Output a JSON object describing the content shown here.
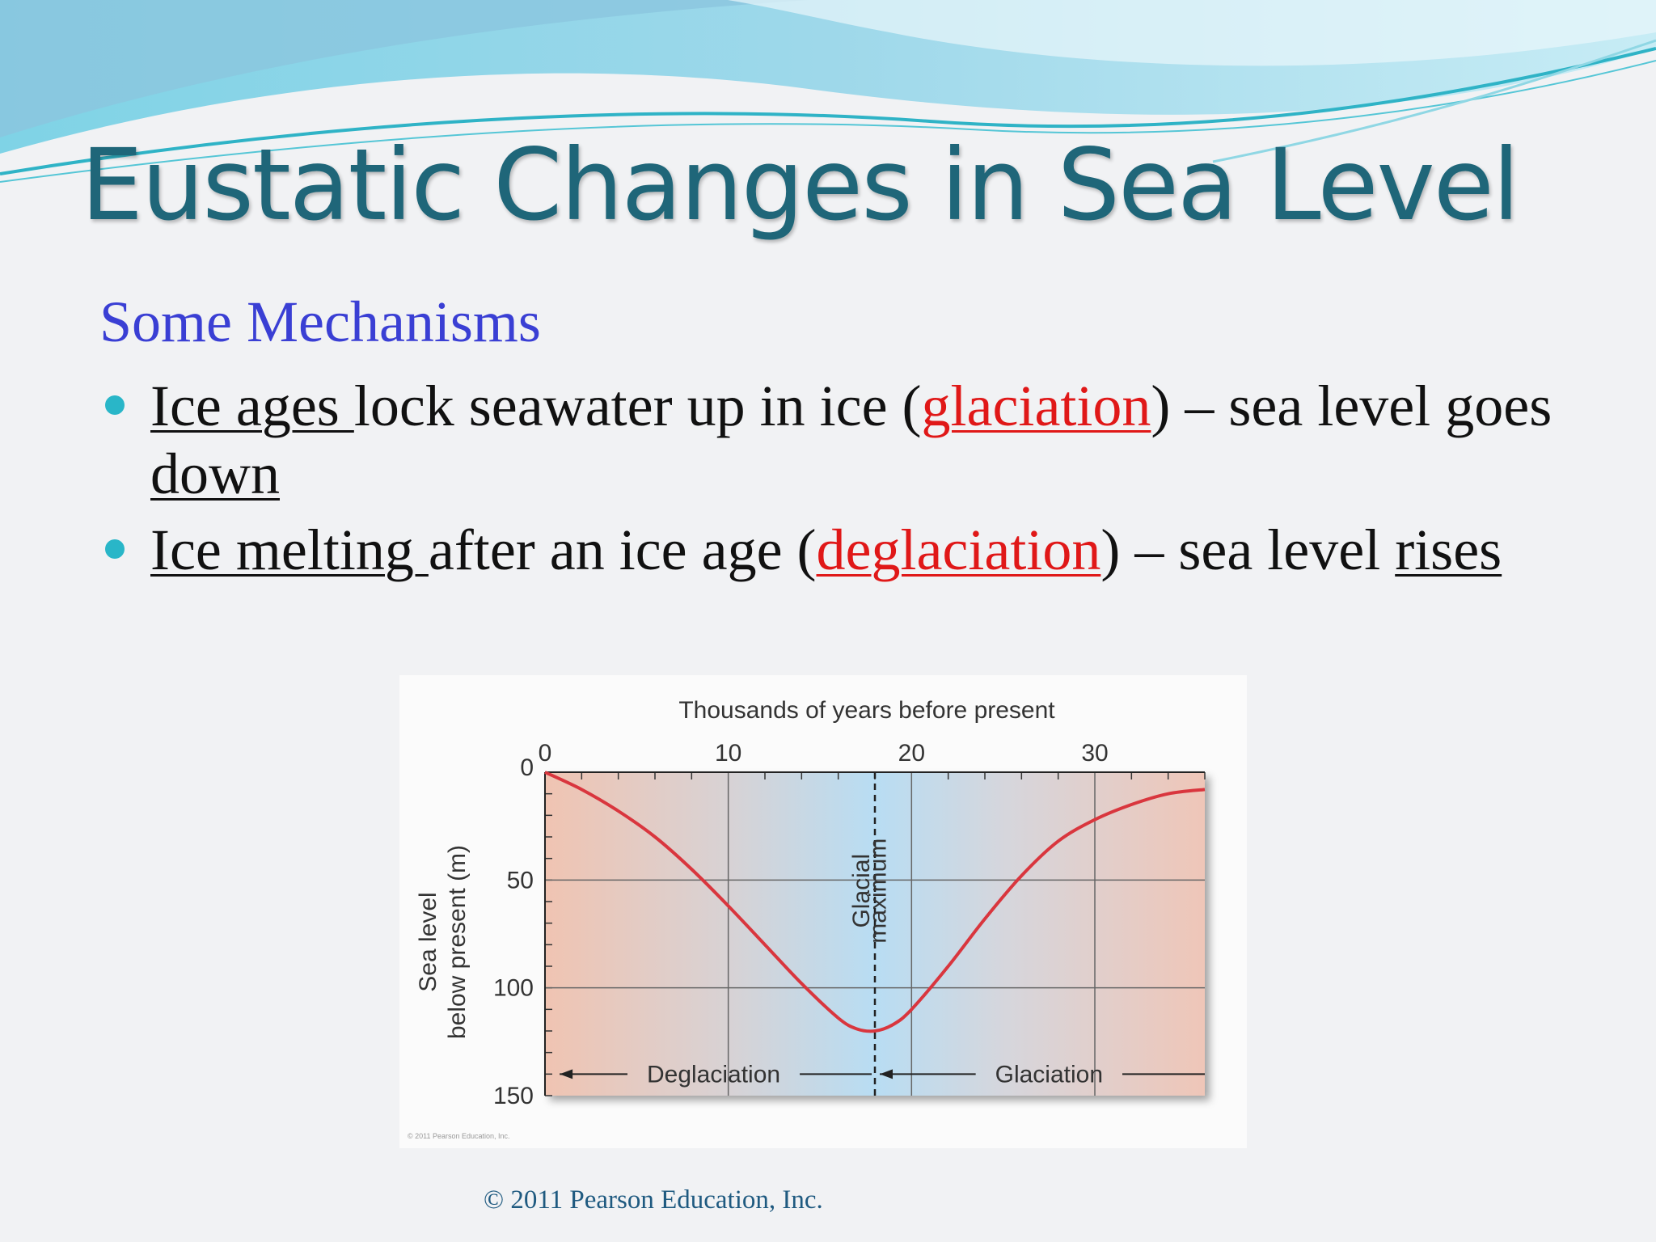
{
  "slide": {
    "title": "Eustatic Changes in Sea Level",
    "subtitle": "Some Mechanisms",
    "bullets": [
      {
        "lead": "Ice ages ",
        "text1": "lock seawater up in ice (",
        "term": "glaciation",
        "text2": ") – sea level goes ",
        "end": "down"
      },
      {
        "lead": "Ice melting ",
        "text1": "after an ice age (",
        "term": "deglaciation",
        "text2": ") – sea level ",
        "end": "rises"
      }
    ],
    "copyright": "© 2011 Pearson Education, Inc.",
    "figure_credit": "© 2011 Pearson Education, Inc."
  },
  "colors": {
    "title": "#1f6679",
    "subtitle": "#3a3fd4",
    "term": "#e01818",
    "bullet": "#29b6c8",
    "curve": "#d9363e"
  },
  "chart_data": {
    "type": "line",
    "xlabel": "Thousands of years before present",
    "ylabel": "Sea level below present (m)",
    "ylabel_lines": [
      "Sea level",
      "below present (m)"
    ],
    "xlim": [
      0,
      36
    ],
    "ylim": [
      0,
      150
    ],
    "y_inverted": true,
    "x_axis_position": "top",
    "xticks": [
      0,
      10,
      20,
      30
    ],
    "yticks": [
      0,
      50,
      100,
      150
    ],
    "grid": true,
    "x": [
      0,
      2,
      4,
      6,
      8,
      10,
      12,
      14,
      16,
      17,
      18,
      19,
      20,
      22,
      24,
      26,
      28,
      30,
      32,
      34,
      36
    ],
    "y": [
      0,
      8,
      18,
      30,
      45,
      62,
      80,
      98,
      114,
      119,
      120,
      117,
      110,
      90,
      68,
      48,
      32,
      22,
      15,
      10,
      8
    ],
    "annotations": [
      {
        "text": "Glacial",
        "x": 17.7,
        "orientation": "vertical"
      },
      {
        "text": "maximum",
        "x": 18.6,
        "orientation": "vertical"
      },
      {
        "text": "Deglaciation",
        "range": [
          0,
          18
        ],
        "arrow": "toward 0"
      },
      {
        "text": "Glaciation",
        "range": [
          18,
          36
        ],
        "arrow": "toward 18"
      }
    ],
    "glacial_maximum_x": 18
  }
}
